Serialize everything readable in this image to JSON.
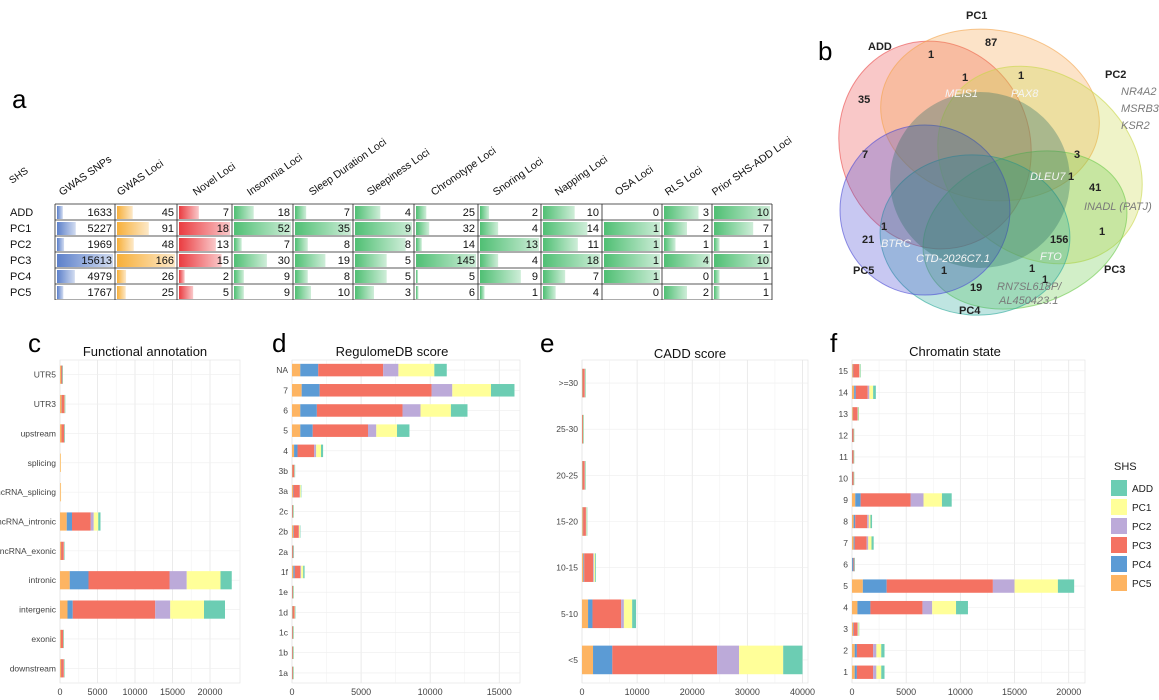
{
  "panel_labels": {
    "a": "a",
    "b": "b",
    "c": "c",
    "d": "d",
    "e": "e",
    "f": "f"
  },
  "table": {
    "corner": "SHS",
    "columns": [
      "GWAS SNPs",
      "GWAS Loci",
      "Novel Loci",
      "Insomnia Loci",
      "Sleep Duration Loci",
      "Sleepiness Loci",
      "Chronotype Loci",
      "Snoring Loci",
      "Napping Loci",
      "OSA Loci",
      "RLS Loci",
      "Prior SHS-ADD Loci"
    ],
    "rows": [
      {
        "name": "ADD",
        "values": [
          1633,
          45,
          7,
          18,
          7,
          4,
          25,
          2,
          10,
          0,
          3,
          10
        ]
      },
      {
        "name": "PC1",
        "values": [
          5227,
          91,
          18,
          52,
          35,
          9,
          32,
          4,
          14,
          1,
          2,
          7
        ]
      },
      {
        "name": "PC2",
        "values": [
          1969,
          48,
          13,
          7,
          8,
          8,
          14,
          13,
          11,
          1,
          1,
          1
        ]
      },
      {
        "name": "PC3",
        "values": [
          15613,
          166,
          15,
          30,
          19,
          5,
          145,
          4,
          18,
          1,
          4,
          10
        ]
      },
      {
        "name": "PC4",
        "values": [
          4979,
          26,
          2,
          9,
          8,
          5,
          5,
          9,
          7,
          1,
          0,
          1
        ]
      },
      {
        "name": "PC5",
        "values": [
          1767,
          25,
          5,
          9,
          10,
          3,
          6,
          1,
          4,
          0,
          2,
          1
        ]
      }
    ],
    "bar_colors": {
      "snps": "#4a72c4",
      "loci": "#f6a623",
      "novel": "#e8262b",
      "trait": "#3cb864"
    }
  },
  "venn": {
    "sets": [
      {
        "name": "ADD",
        "color": "#ea4a4a"
      },
      {
        "name": "PC1",
        "color": "#f4a34a"
      },
      {
        "name": "PC2",
        "color": "#c9d74a"
      },
      {
        "name": "PC3",
        "color": "#6ac94a"
      },
      {
        "name": "PC4",
        "color": "#2aa89a"
      },
      {
        "name": "PC5",
        "color": "#4a4ad4"
      }
    ],
    "counts": {
      "add_only": "35",
      "pc1_only": "87",
      "pc2_only": "41",
      "pc3_only": "156",
      "pc4_only": "19",
      "pc5_only": "21",
      "add_pc1": "1",
      "add_pc5": "7",
      "add_pc1_pc2": "1",
      "pc1_pc2": "1",
      "pc2_pc3": "3",
      "pc2_pc3b": "1",
      "pc3_pc2": "1",
      "pc3_pc4": "1",
      "pc4_pc5": "1",
      "pc4_pc3": "1",
      "pc5_add": "1"
    },
    "genes": {
      "meis1": "MEIS1",
      "pax8": "PAX8",
      "nr4a2": "NR4A2",
      "msrb3": "MSRB3",
      "ksr2": "KSR2",
      "dleu7": "DLEU7",
      "inadl": "INADL (PATJ)",
      "btrc": "BTRC",
      "fto": "FTO",
      "ctd": "CTD-2026C7.1",
      "rn7": "RN7SL618P/",
      "al45": "AL450423.1"
    }
  },
  "legend": {
    "title": "SHS",
    "items": [
      {
        "label": "ADD",
        "color": "#6ccdb3"
      },
      {
        "label": "PC1",
        "color": "#ffff99"
      },
      {
        "label": "PC2",
        "color": "#bcaad9"
      },
      {
        "label": "PC3",
        "color": "#f47262"
      },
      {
        "label": "PC4",
        "color": "#5b9bd5"
      },
      {
        "label": "PC5",
        "color": "#fdb462"
      }
    ]
  },
  "chart_data": [
    {
      "id": "c",
      "type": "bar",
      "orientation": "horizontal",
      "stacked": true,
      "title": "Functional annotation",
      "xlabel": "",
      "ylabel": "",
      "categories": [
        "UTR5",
        "UTR3",
        "upstream",
        "splicing",
        "ncRNA_splicing",
        "ncRNA_intronic",
        "ncRNA_exonic",
        "intronic",
        "intergenic",
        "exonic",
        "downstream"
      ],
      "xlim": [
        0,
        24000
      ],
      "xticks": [
        0,
        5000,
        10000,
        15000,
        20000
      ],
      "series": [
        {
          "name": "PC5",
          "values": [
            150,
            220,
            200,
            30,
            40,
            900,
            150,
            1300,
            1000,
            120,
            150
          ]
        },
        {
          "name": "PC4",
          "values": [
            10,
            20,
            10,
            0,
            0,
            700,
            10,
            2500,
            700,
            10,
            10
          ]
        },
        {
          "name": "PC3",
          "values": [
            150,
            350,
            350,
            30,
            40,
            2500,
            350,
            10800,
            11000,
            300,
            350
          ]
        },
        {
          "name": "PC2",
          "values": [
            10,
            20,
            20,
            0,
            0,
            400,
            10,
            2300,
            2000,
            10,
            20
          ]
        },
        {
          "name": "PC1",
          "values": [
            10,
            30,
            20,
            10,
            10,
            600,
            20,
            4500,
            4500,
            20,
            20
          ]
        },
        {
          "name": "ADD",
          "values": [
            10,
            20,
            10,
            0,
            0,
            300,
            10,
            1500,
            2800,
            10,
            10
          ]
        }
      ]
    },
    {
      "id": "d",
      "type": "bar",
      "orientation": "horizontal",
      "stacked": true,
      "title": "RegulomeDB score",
      "xlabel": "",
      "ylabel": "",
      "categories": [
        "NA",
        "7",
        "6",
        "5",
        "4",
        "3b",
        "3a",
        "2c",
        "2b",
        "2a",
        "1f",
        "1e",
        "1d",
        "1c",
        "1b",
        "1a"
      ],
      "xlim": [
        0,
        16500
      ],
      "xticks": [
        0,
        5000,
        10000,
        15000
      ],
      "series": [
        {
          "name": "PC5",
          "values": [
            600,
            700,
            600,
            600,
            150,
            30,
            80,
            20,
            100,
            20,
            100,
            20,
            40,
            20,
            20,
            20
          ]
        },
        {
          "name": "PC4",
          "values": [
            1300,
            1300,
            1200,
            900,
            250,
            10,
            30,
            10,
            40,
            10,
            100,
            10,
            20,
            10,
            10,
            10
          ]
        },
        {
          "name": "PC3",
          "values": [
            4700,
            8100,
            6200,
            4000,
            1200,
            120,
            450,
            40,
            350,
            60,
            400,
            40,
            120,
            40,
            40,
            40
          ]
        },
        {
          "name": "PC2",
          "values": [
            1100,
            1500,
            1300,
            600,
            150,
            10,
            20,
            10,
            20,
            10,
            60,
            10,
            10,
            10,
            10,
            10
          ]
        },
        {
          "name": "PC1",
          "values": [
            2600,
            2800,
            2200,
            1500,
            350,
            20,
            60,
            10,
            60,
            10,
            150,
            10,
            20,
            10,
            10,
            10
          ]
        },
        {
          "name": "ADD",
          "values": [
            900,
            1700,
            1200,
            900,
            150,
            10,
            20,
            10,
            20,
            10,
            100,
            10,
            10,
            10,
            10,
            10
          ]
        }
      ]
    },
    {
      "id": "e",
      "type": "bar",
      "orientation": "horizontal",
      "stacked": true,
      "title": "CADD score",
      "xlabel": "",
      "ylabel": "",
      "categories": [
        ">=30",
        "25-30",
        "20-25",
        "15-20",
        "10-15",
        "5-10",
        "<5"
      ],
      "xlim": [
        0,
        41000
      ],
      "xticks": [
        0,
        10000,
        20000,
        30000,
        40000
      ],
      "series": [
        {
          "name": "PC5",
          "values": [
            100,
            60,
            100,
            150,
            250,
            1100,
            2000
          ]
        },
        {
          "name": "PC4",
          "values": [
            40,
            10,
            40,
            60,
            150,
            800,
            3500
          ]
        },
        {
          "name": "PC3",
          "values": [
            350,
            120,
            350,
            500,
            1600,
            5200,
            19000
          ]
        },
        {
          "name": "PC2",
          "values": [
            40,
            10,
            40,
            60,
            150,
            500,
            4000
          ]
        },
        {
          "name": "PC1",
          "values": [
            60,
            20,
            60,
            100,
            200,
            1500,
            8000
          ]
        },
        {
          "name": "ADD",
          "values": [
            40,
            10,
            40,
            60,
            150,
            700,
            3500
          ]
        }
      ]
    },
    {
      "id": "f",
      "type": "bar",
      "orientation": "horizontal",
      "stacked": true,
      "title": "Chromatin state",
      "xlabel": "",
      "ylabel": "",
      "categories": [
        "15",
        "14",
        "13",
        "12",
        "11",
        "10",
        "9",
        "8",
        "7",
        "6",
        "5",
        "4",
        "3",
        "2",
        "1"
      ],
      "xlim": [
        0,
        21500
      ],
      "xticks": [
        0,
        5000,
        10000,
        15000,
        20000
      ],
      "series": [
        {
          "name": "PC5",
          "values": [
            80,
            200,
            80,
            10,
            10,
            10,
            300,
            150,
            150,
            10,
            1000,
            500,
            100,
            250,
            250
          ]
        },
        {
          "name": "PC4",
          "values": [
            40,
            150,
            20,
            10,
            10,
            10,
            500,
            150,
            100,
            120,
            2200,
            1200,
            50,
            200,
            200
          ]
        },
        {
          "name": "PC3",
          "values": [
            550,
            1100,
            400,
            120,
            120,
            120,
            4600,
            1100,
            1100,
            80,
            9800,
            4800,
            350,
            1500,
            1500
          ]
        },
        {
          "name": "PC2",
          "values": [
            40,
            150,
            40,
            10,
            10,
            10,
            1200,
            150,
            150,
            10,
            2000,
            900,
            40,
            300,
            300
          ]
        },
        {
          "name": "PC1",
          "values": [
            60,
            350,
            60,
            10,
            10,
            10,
            1700,
            150,
            300,
            10,
            4000,
            2200,
            80,
            450,
            450
          ]
        },
        {
          "name": "ADD",
          "values": [
            30,
            250,
            30,
            10,
            10,
            10,
            900,
            150,
            200,
            10,
            1500,
            1100,
            30,
            300,
            300
          ]
        }
      ]
    }
  ]
}
